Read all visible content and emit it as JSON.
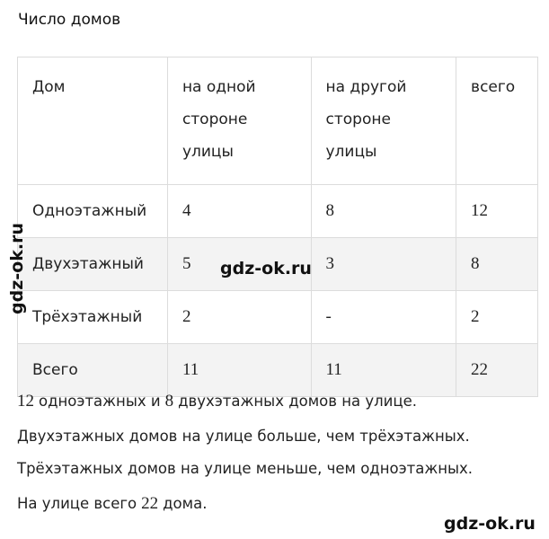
{
  "title": "Число домов",
  "table": {
    "header": [
      [
        "Дом"
      ],
      [
        "на одной",
        "стороне",
        "улицы"
      ],
      [
        "на другой",
        "стороне",
        "улицы"
      ],
      [
        "всего"
      ]
    ],
    "rows": [
      [
        "Одноэтажный",
        "4",
        "8",
        "12"
      ],
      [
        "Двухэтажный",
        "5",
        "3",
        "8"
      ],
      [
        "Трёхэтажный",
        "2",
        "-",
        "2"
      ],
      [
        "Всего",
        "11",
        "11",
        "22"
      ]
    ]
  },
  "sentences": [
    [
      {
        "math": "12"
      },
      {
        "text": "одноэтажных и"
      },
      {
        "math": "8"
      },
      {
        "text": "двухэтажных домов на улице."
      }
    ],
    [
      {
        "text": "Двухэтажных домов на улице больше, чем трёхэтажных."
      }
    ],
    [
      {
        "text": "Трёхэтажных домов на улице меньше, чем одноэтажных."
      }
    ],
    [
      {
        "text": "На улице всего"
      },
      {
        "math": "22"
      },
      {
        "text": "дома."
      }
    ]
  ],
  "watermarks": [
    "gdz-ok.ru",
    "gdz-ok.ru",
    "gdz-ok.ru"
  ]
}
